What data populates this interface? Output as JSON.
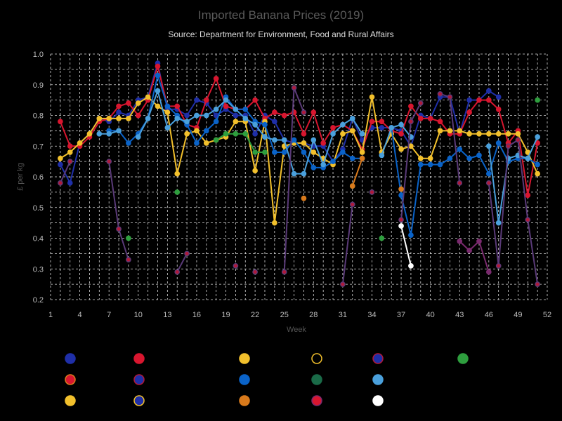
{
  "chart_data": {
    "type": "line",
    "title": "Imported Banana Prices (2019)",
    "subtitle": "Source: Department for Environment, Food and Rural Affairs",
    "xlabel": "Week",
    "ylabel": "£ per kg",
    "xlim": [
      1,
      52
    ],
    "ylim": [
      0.2,
      1.0
    ],
    "x_ticks": [
      1,
      4,
      7,
      10,
      13,
      16,
      19,
      22,
      25,
      28,
      31,
      34,
      37,
      40,
      43,
      46,
      49,
      52
    ],
    "y_ticks": [
      0.2,
      0.3,
      0.4,
      0.5,
      0.6,
      0.7,
      0.8,
      0.9,
      1.0
    ],
    "grid": true,
    "legend": "bottom",
    "series": [
      {
        "color": "#1f2fa8",
        "fill": "#1f2fa8",
        "values": [
          [
            2,
            0.64
          ],
          [
            3,
            0.58
          ],
          [
            4,
            0.71
          ],
          [
            5,
            0.74
          ],
          [
            6,
            0.79
          ],
          [
            7,
            0.78
          ],
          [
            8,
            0.81
          ],
          [
            9,
            0.8
          ],
          [
            10,
            0.85
          ],
          [
            11,
            0.86
          ],
          [
            12,
            0.97
          ],
          [
            13,
            0.82
          ],
          [
            14,
            0.82
          ],
          [
            15,
            0.8
          ],
          [
            16,
            0.85
          ],
          [
            17,
            0.84
          ],
          [
            18,
            0.8
          ],
          [
            19,
            0.82
          ],
          [
            20,
            0.8
          ],
          [
            21,
            0.8
          ],
          [
            22,
            0.74
          ],
          [
            23,
            0.8
          ],
          [
            24,
            0.78
          ],
          [
            25,
            0.72
          ],
          [
            26,
            0.71
          ],
          [
            27,
            0.71
          ],
          [
            28,
            0.7
          ],
          [
            29,
            0.7
          ],
          [
            30,
            0.65
          ],
          [
            31,
            0.69
          ],
          [
            32,
            0.79
          ],
          [
            33,
            0.72
          ],
          [
            34,
            0.76
          ],
          [
            35,
            0.76
          ],
          [
            36,
            0.76
          ],
          [
            37,
            0.75
          ],
          [
            38,
            0.7
          ],
          [
            39,
            0.8
          ],
          [
            40,
            0.79
          ],
          [
            41,
            0.86
          ],
          [
            42,
            0.86
          ],
          [
            43,
            0.74
          ],
          [
            44,
            0.85
          ],
          [
            45,
            0.85
          ],
          [
            46,
            0.88
          ],
          [
            47,
            0.86
          ]
        ]
      },
      {
        "color": "#d8162f",
        "fill": "#d8162f",
        "values": [
          [
            2,
            0.78
          ],
          [
            3,
            0.7
          ],
          [
            4,
            0.7
          ],
          [
            5,
            0.73
          ],
          [
            6,
            0.78
          ],
          [
            7,
            0.79
          ],
          [
            8,
            0.83
          ],
          [
            9,
            0.84
          ],
          [
            10,
            0.8
          ],
          [
            11,
            0.85
          ],
          [
            12,
            0.96
          ],
          [
            13,
            0.83
          ],
          [
            14,
            0.83
          ],
          [
            15,
            0.77
          ],
          [
            16,
            0.76
          ],
          [
            17,
            0.85
          ],
          [
            18,
            0.92
          ],
          [
            19,
            0.83
          ],
          [
            20,
            0.82
          ],
          [
            21,
            0.82
          ],
          [
            22,
            0.85
          ],
          [
            23,
            0.79
          ],
          [
            24,
            0.81
          ],
          [
            25,
            0.8
          ],
          [
            26,
            0.81
          ],
          [
            27,
            0.74
          ],
          [
            28,
            0.81
          ],
          [
            29,
            0.71
          ],
          [
            30,
            0.76
          ],
          [
            31,
            0.77
          ],
          [
            32,
            0.75
          ],
          [
            33,
            0.69
          ],
          [
            34,
            0.78
          ],
          [
            35,
            0.78
          ],
          [
            36,
            0.75
          ],
          [
            37,
            0.74
          ],
          [
            38,
            0.83
          ],
          [
            39,
            0.79
          ],
          [
            40,
            0.79
          ],
          [
            41,
            0.78
          ],
          [
            42,
            0.74
          ],
          [
            43,
            0.74
          ],
          [
            44,
            0.81
          ],
          [
            45,
            0.85
          ],
          [
            46,
            0.85
          ],
          [
            47,
            0.82
          ],
          [
            48,
            0.71
          ],
          [
            49,
            0.75
          ],
          [
            50,
            0.54
          ],
          [
            51,
            0.71
          ]
        ]
      },
      {
        "color": "#f2c02c",
        "fill": "#f2c02c",
        "values": [
          [
            2,
            0.66
          ],
          [
            3,
            0.68
          ],
          [
            4,
            0.71
          ],
          [
            5,
            0.74
          ],
          [
            6,
            0.79
          ],
          [
            7,
            0.79
          ],
          [
            8,
            0.79
          ],
          [
            9,
            0.79
          ],
          [
            10,
            0.84
          ],
          [
            11,
            0.86
          ],
          [
            12,
            0.83
          ],
          [
            13,
            0.81
          ],
          [
            14,
            0.61
          ],
          [
            15,
            0.74
          ],
          [
            16,
            0.75
          ],
          [
            17,
            0.71
          ],
          [
            18,
            0.72
          ],
          [
            19,
            0.73
          ],
          [
            20,
            0.78
          ],
          [
            21,
            0.78
          ],
          [
            22,
            0.62
          ],
          [
            23,
            0.78
          ],
          [
            24,
            0.45
          ],
          [
            25,
            0.7
          ],
          [
            26,
            0.71
          ],
          [
            27,
            0.71
          ],
          [
            28,
            0.68
          ],
          [
            29,
            0.66
          ],
          [
            30,
            0.64
          ],
          [
            31,
            0.74
          ],
          [
            32,
            0.75
          ],
          [
            33,
            0.68
          ],
          [
            34,
            0.86
          ],
          [
            35,
            0.68
          ],
          [
            36,
            0.74
          ],
          [
            37,
            0.69
          ],
          [
            38,
            0.7
          ],
          [
            39,
            0.66
          ],
          [
            40,
            0.66
          ],
          [
            41,
            0.75
          ],
          [
            42,
            0.75
          ],
          [
            43,
            0.75
          ],
          [
            44,
            0.74
          ],
          [
            45,
            0.74
          ],
          [
            46,
            0.74
          ],
          [
            47,
            0.74
          ],
          [
            48,
            0.74
          ],
          [
            49,
            0.74
          ],
          [
            50,
            0.68
          ],
          [
            51,
            0.61
          ]
        ]
      },
      {
        "color": "#0a63c8",
        "fill": "#0a63c8",
        "values": [
          [
            7,
            0.75
          ],
          [
            8,
            0.75
          ],
          [
            9,
            0.71
          ],
          [
            10,
            0.74
          ],
          [
            11,
            0.79
          ],
          [
            12,
            0.93
          ],
          [
            13,
            0.83
          ],
          [
            14,
            0.8
          ],
          [
            15,
            0.77
          ],
          [
            16,
            0.71
          ],
          [
            17,
            0.75
          ],
          [
            18,
            0.78
          ],
          [
            19,
            0.86
          ],
          [
            20,
            0.82
          ],
          [
            21,
            0.82
          ],
          [
            22,
            0.78
          ],
          [
            23,
            0.77
          ],
          [
            24,
            0.68
          ],
          [
            25,
            0.68
          ],
          [
            26,
            0.72
          ],
          [
            27,
            0.68
          ],
          [
            28,
            0.63
          ],
          [
            29,
            0.63
          ],
          [
            30,
            0.65
          ],
          [
            31,
            0.68
          ],
          [
            32,
            0.66
          ],
          [
            33,
            0.66
          ],
          [
            36,
            0.76
          ],
          [
            37,
            0.54
          ],
          [
            38,
            0.41
          ],
          [
            39,
            0.64
          ],
          [
            40,
            0.64
          ],
          [
            41,
            0.64
          ],
          [
            42,
            0.66
          ],
          [
            43,
            0.69
          ],
          [
            44,
            0.66
          ],
          [
            45,
            0.67
          ],
          [
            46,
            0.61
          ],
          [
            47,
            0.71
          ],
          [
            48,
            0.65
          ],
          [
            49,
            0.66
          ],
          [
            50,
            0.66
          ],
          [
            51,
            0.64
          ]
        ]
      },
      {
        "color": "#4aa0dc",
        "fill": "#4aa0dc",
        "values": [
          [
            6,
            0.74
          ],
          [
            7,
            0.74
          ],
          [
            8,
            0.75
          ],
          [
            10,
            0.73
          ],
          [
            11,
            0.79
          ],
          [
            12,
            0.88
          ],
          [
            13,
            0.76
          ],
          [
            14,
            0.79
          ],
          [
            15,
            0.78
          ],
          [
            16,
            0.8
          ],
          [
            17,
            0.8
          ],
          [
            18,
            0.82
          ],
          [
            19,
            0.85
          ],
          [
            20,
            0.82
          ],
          [
            21,
            0.79
          ],
          [
            22,
            0.77
          ],
          [
            23,
            0.73
          ],
          [
            24,
            0.72
          ],
          [
            25,
            0.72
          ],
          [
            26,
            0.61
          ],
          [
            27,
            0.61
          ],
          [
            28,
            0.72
          ],
          [
            29,
            0.64
          ],
          [
            30,
            0.74
          ],
          [
            31,
            0.77
          ],
          [
            32,
            0.79
          ],
          [
            33,
            0.74
          ],
          [
            35,
            0.67
          ],
          [
            36,
            0.76
          ],
          [
            37,
            0.77
          ],
          [
            38,
            0.73
          ],
          [
            46,
            0.7
          ],
          [
            47,
            0.45
          ],
          [
            48,
            0.66
          ],
          [
            49,
            0.67
          ],
          [
            50,
            0.66
          ],
          [
            51,
            0.73
          ]
        ]
      },
      {
        "color": "#5a3a78",
        "fill": "#b01a3a",
        "values": [
          [
            2,
            0.58
          ],
          [
            3,
            0.65
          ],
          [
            7,
            0.65
          ],
          [
            8,
            0.43
          ],
          [
            9,
            0.33
          ],
          [
            14,
            0.29
          ],
          [
            15,
            0.35
          ],
          [
            20,
            0.31
          ],
          [
            22,
            0.29
          ],
          [
            25,
            0.29
          ],
          [
            26,
            0.89
          ],
          [
            27,
            0.81
          ],
          [
            31,
            0.25
          ],
          [
            32,
            0.51
          ],
          [
            34,
            0.55
          ],
          [
            37,
            0.46
          ],
          [
            38,
            0.78
          ],
          [
            39,
            0.84
          ],
          [
            41,
            0.87
          ],
          [
            42,
            0.86
          ],
          [
            43,
            0.58
          ],
          [
            46,
            0.58
          ],
          [
            47,
            0.31
          ],
          [
            48,
            0.7
          ],
          [
            49,
            0.72
          ],
          [
            50,
            0.46
          ],
          [
            51,
            0.25
          ]
        ]
      },
      {
        "color": "#2e9e3e",
        "fill": "#2e9e3e",
        "values": [
          [
            9,
            0.4
          ],
          [
            14,
            0.55
          ],
          [
            18,
            0.72
          ],
          [
            19,
            0.74
          ],
          [
            20,
            0.74
          ],
          [
            21,
            0.74
          ],
          [
            22,
            0.68
          ],
          [
            23,
            0.68
          ],
          [
            32,
            0.57
          ],
          [
            35,
            0.4
          ],
          [
            51,
            0.85
          ]
        ]
      },
      {
        "color": "#d97a1c",
        "fill": "#d97a1c",
        "values": [
          [
            27,
            0.53
          ],
          [
            32,
            0.57
          ],
          [
            33,
            0.66
          ],
          [
            37,
            0.56
          ]
        ]
      },
      {
        "color": "#7a2a6e",
        "fill": "#7a2a6e",
        "values": [
          [
            43,
            0.39
          ],
          [
            44,
            0.36
          ],
          [
            45,
            0.39
          ],
          [
            46,
            0.29
          ]
        ]
      },
      {
        "color": "#ffffff",
        "fill": "#ffffff",
        "values": [
          [
            37,
            0.44
          ],
          [
            38,
            0.31
          ]
        ]
      }
    ]
  },
  "legend_markers": [
    {
      "row": 0,
      "col": 0,
      "fill": "#1f2fa8",
      "stroke": "#1f2fa8"
    },
    {
      "row": 0,
      "col": 1,
      "fill": "#d8162f",
      "stroke": "#d8162f"
    },
    {
      "row": 0,
      "col": 2,
      "fill": "#f2c02c",
      "stroke": "#f2c02c"
    },
    {
      "row": 0,
      "col": 3,
      "fill": "#000000",
      "stroke": "#f2c02c"
    },
    {
      "row": 0,
      "col": 4,
      "fill": "#1f2fa8",
      "stroke": "#b01a3a"
    },
    {
      "row": 0,
      "col": 5,
      "fill": "#2e9e3e",
      "stroke": "#2e9e3e"
    },
    {
      "row": 1,
      "col": 0,
      "fill": "#d8162f",
      "stroke": "#d97a1c"
    },
    {
      "row": 1,
      "col": 1,
      "fill": "#1f2fa8",
      "stroke": "#b01a3a"
    },
    {
      "row": 1,
      "col": 2,
      "fill": "#0a63c8",
      "stroke": "#0a63c8"
    },
    {
      "row": 1,
      "col": 3,
      "fill": "#1a6b48",
      "stroke": "#1a6b48"
    },
    {
      "row": 1,
      "col": 4,
      "fill": "#4aa0dc",
      "stroke": "#4aa0dc"
    },
    {
      "row": 2,
      "col": 0,
      "fill": "#f2c02c",
      "stroke": "#f2c02c"
    },
    {
      "row": 2,
      "col": 1,
      "fill": "#1f2fa8",
      "stroke": "#f2c02c"
    },
    {
      "row": 2,
      "col": 2,
      "fill": "#d97a1c",
      "stroke": "#d97a1c"
    },
    {
      "row": 2,
      "col": 3,
      "fill": "#d8162f",
      "stroke": "#7a2a6e"
    },
    {
      "row": 2,
      "col": 4,
      "fill": "#ffffff",
      "stroke": "#ffffff"
    }
  ]
}
